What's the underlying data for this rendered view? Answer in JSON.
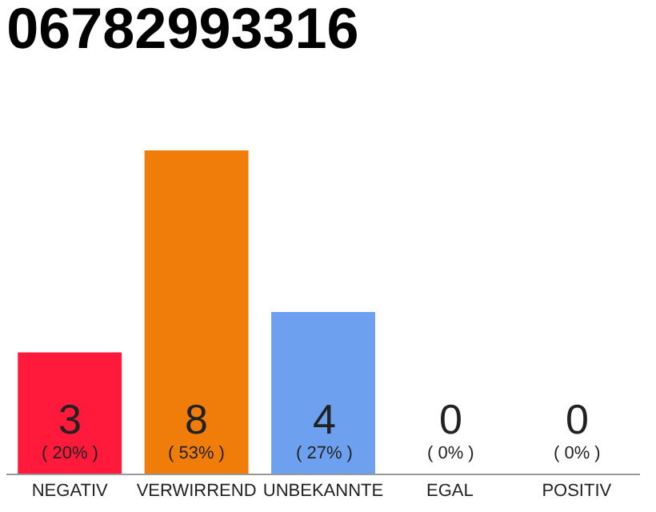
{
  "chart_data": {
    "type": "bar",
    "title": "06782993316",
    "categories": [
      "NEGATIV",
      "VERWIRREND",
      "UNBEKANNTE",
      "EGAL",
      "POSITIV"
    ],
    "values": [
      3,
      8,
      4,
      0,
      0
    ],
    "colors": [
      "#ff1a3c",
      "#f07d0a",
      "#6ea0f0",
      "#cccccc",
      "#cccccc"
    ],
    "value_labels": [
      "3\n( 20% )",
      "8\n( 53% )",
      "4\n( 27% )",
      "0\n( 0% )",
      "0\n( 0% )"
    ]
  }
}
